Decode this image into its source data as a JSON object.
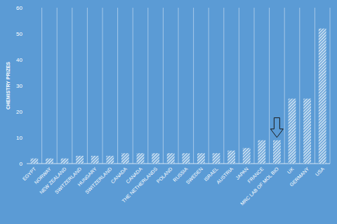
{
  "chart_data": {
    "type": "bar",
    "y_label": "CHEMISTRY PRIZES",
    "categories": [
      "EGYPT",
      "NORWAY",
      "NEW ZEALAND",
      "SWITZERLAND",
      "HUNGARY",
      "SWITZERLAND",
      "CANADA",
      "CANADA",
      "THE NETHERLANDS",
      "POLAND",
      "RUSSIA",
      "SWEDEN",
      "ISRAEL",
      "AUSTRIA",
      "JAPAN",
      "FRANCE",
      "MRC LAB OF MOL BIO",
      "UK",
      "GERMANY",
      "USA"
    ],
    "values": [
      2,
      2,
      2,
      3,
      3,
      3,
      4,
      4,
      4,
      4,
      4,
      4,
      4,
      5,
      6,
      9,
      9,
      25,
      25,
      52
    ],
    "color": "#ffffff",
    "ylim": [
      0,
      60
    ],
    "yticks": [
      0,
      10,
      20,
      30,
      40,
      50,
      60
    ],
    "grid": true
  }
}
